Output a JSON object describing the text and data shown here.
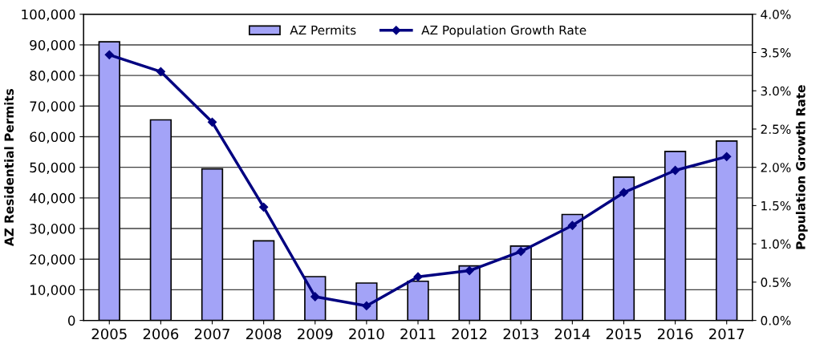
{
  "chart_data": {
    "type": "bar",
    "ylabel": "AZ Residential Permits",
    "y2label": "Population Growth Rate",
    "categories": [
      "2005",
      "2006",
      "2007",
      "2008",
      "2009",
      "2010",
      "2011",
      "2012",
      "2013",
      "2014",
      "2015",
      "2016",
      "2017"
    ],
    "series": [
      {
        "name": "AZ Permits",
        "color": "#a3a3f7",
        "values": [
          91000,
          65500,
          49500,
          26000,
          14300,
          12200,
          12800,
          17800,
          24300,
          34600,
          46800,
          55200,
          58600
        ]
      },
      {
        "name": "AZ Population Growth Rate",
        "type": "line",
        "axis": "y2",
        "color": "#000080",
        "marker": "diamond",
        "values": [
          3.47,
          3.25,
          2.59,
          1.48,
          0.31,
          0.19,
          0.57,
          0.65,
          0.9,
          1.24,
          1.67,
          1.96,
          2.14
        ]
      }
    ],
    "ylim": [
      0,
      100000
    ],
    "yticks": [
      {
        "value": 0,
        "label": "0"
      },
      {
        "value": 10000,
        "label": "10,000"
      },
      {
        "value": 20000,
        "label": "20,000"
      },
      {
        "value": 30000,
        "label": "30,000"
      },
      {
        "value": 40000,
        "label": "40,000"
      },
      {
        "value": 50000,
        "label": "50,000"
      },
      {
        "value": 60000,
        "label": "60,000"
      },
      {
        "value": 70000,
        "label": "70,000"
      },
      {
        "value": 80000,
        "label": "80,000"
      },
      {
        "value": 90000,
        "label": "90,000"
      },
      {
        "value": 100000,
        "label": "100,000"
      }
    ],
    "y2lim": [
      0,
      4
    ],
    "y2ticks": [
      {
        "value": 0,
        "label": "0.0%"
      },
      {
        "value": 0.5,
        "label": "0.5%"
      },
      {
        "value": 1,
        "label": "1.0%"
      },
      {
        "value": 1.5,
        "label": "1.5%"
      },
      {
        "value": 2,
        "label": "2.0%"
      },
      {
        "value": 2.5,
        "label": "2.5%"
      },
      {
        "value": 3,
        "label": "3.0%"
      },
      {
        "value": 3.5,
        "label": "3.5%"
      },
      {
        "value": 4,
        "label": "4.0%"
      }
    ],
    "grid": "y",
    "legend": "top"
  }
}
